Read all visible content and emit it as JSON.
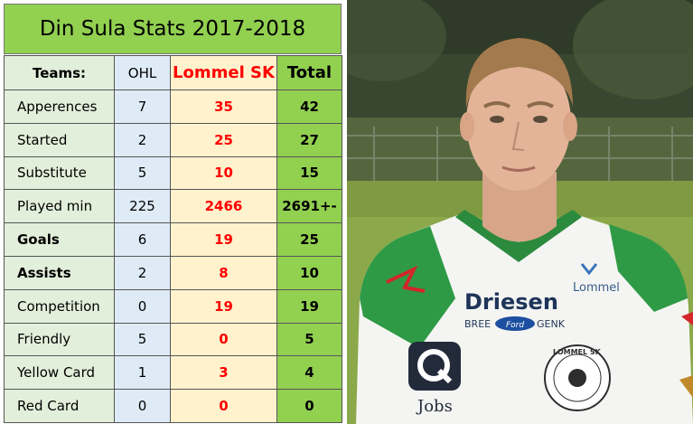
{
  "title": "Din Sula Stats 2017-2018",
  "header": {
    "label": "Teams:",
    "ohl": "OHL",
    "lommel": "Lommel SK",
    "total": "Total"
  },
  "rows": [
    {
      "label": "Apperences",
      "ohl": "7",
      "lommel": "35",
      "total": "42"
    },
    {
      "label": "Started",
      "ohl": "2",
      "lommel": "25",
      "total": "27"
    },
    {
      "label": "Substitute",
      "ohl": "5",
      "lommel": "10",
      "total": "15"
    },
    {
      "label": "Played min",
      "ohl": "225",
      "lommel": "2466",
      "total": "2691+-"
    },
    {
      "label": "Goals",
      "ohl": "6",
      "lommel": "19",
      "total": "25"
    },
    {
      "label": "Assists",
      "ohl": "2",
      "lommel": "8",
      "total": "10"
    },
    {
      "label": "Competition",
      "ohl": "0",
      "lommel": "19",
      "total": "19"
    },
    {
      "label": "Friendly",
      "ohl": "5",
      "lommel": "0",
      "total": "5"
    },
    {
      "label": "Yellow Card",
      "ohl": "1",
      "lommel": "3",
      "total": "4"
    },
    {
      "label": "Red Card",
      "ohl": "0",
      "lommel": "0",
      "total": "0"
    }
  ],
  "photo": {
    "sponsor_main": "Driesen",
    "sponsor_sub_left": "BREE",
    "sponsor_sub_right": "GENK",
    "ford": "Ford",
    "club_badge": "Lommel",
    "crest": "LOMMEL SK",
    "q_sponsor": "Jobs"
  },
  "colors": {
    "title_bg": "#92d050",
    "label_bg": "#e2efda",
    "ohl_bg": "#deebf7",
    "lommel_bg": "#fff2cc",
    "lommel_text": "#ff0000",
    "total_bg": "#92d050"
  }
}
